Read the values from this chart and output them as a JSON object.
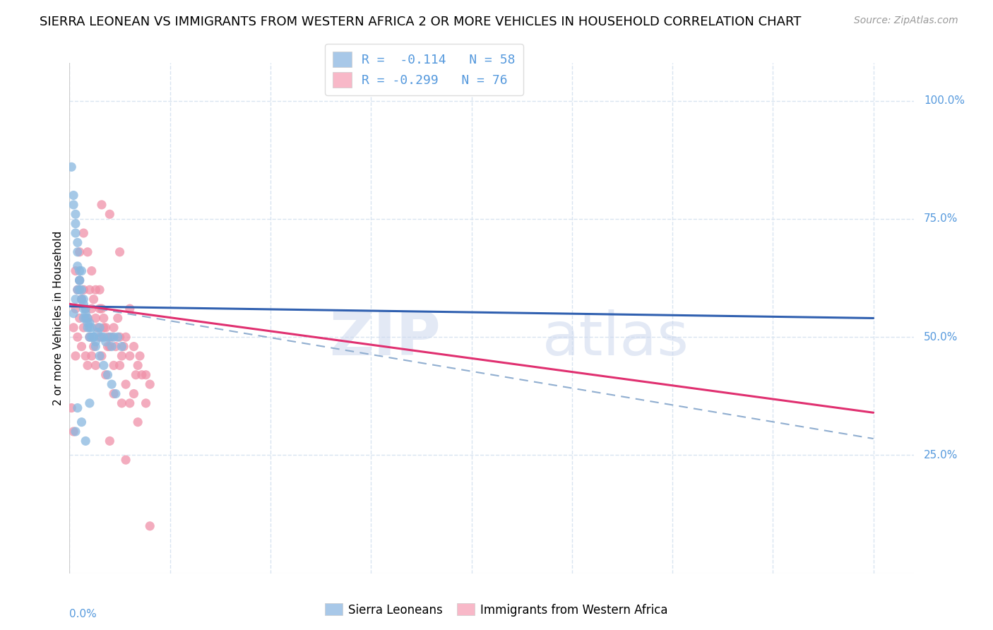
{
  "title": "SIERRA LEONEAN VS IMMIGRANTS FROM WESTERN AFRICA 2 OR MORE VEHICLES IN HOUSEHOLD CORRELATION CHART",
  "source": "Source: ZipAtlas.com",
  "ylabel": "2 or more Vehicles in Household",
  "ylabel_ticks": [
    "25.0%",
    "50.0%",
    "75.0%",
    "100.0%"
  ],
  "ylabel_tick_vals": [
    0.25,
    0.5,
    0.75,
    1.0
  ],
  "watermark_zip": "ZIP",
  "watermark_atlas": "atlas",
  "legend_line1": "R =  -0.114   N = 58",
  "legend_line2": "R = -0.299   N = 76",
  "legend_color1": "#a8c8e8",
  "legend_color2": "#f8b8c8",
  "blue_scatter_x": [
    0.001,
    0.002,
    0.002,
    0.003,
    0.003,
    0.003,
    0.004,
    0.004,
    0.004,
    0.005,
    0.005,
    0.005,
    0.006,
    0.006,
    0.007,
    0.007,
    0.007,
    0.008,
    0.008,
    0.009,
    0.009,
    0.01,
    0.01,
    0.011,
    0.012,
    0.013,
    0.014,
    0.015,
    0.016,
    0.017,
    0.018,
    0.02,
    0.021,
    0.022,
    0.024,
    0.026,
    0.002,
    0.003,
    0.004,
    0.005,
    0.006,
    0.007,
    0.008,
    0.009,
    0.01,
    0.011,
    0.012,
    0.013,
    0.015,
    0.017,
    0.019,
    0.021,
    0.023,
    0.003,
    0.004,
    0.006,
    0.008,
    0.01
  ],
  "blue_scatter_y": [
    0.86,
    0.8,
    0.78,
    0.76,
    0.74,
    0.72,
    0.7,
    0.68,
    0.65,
    0.64,
    0.62,
    0.6,
    0.6,
    0.58,
    0.57,
    0.56,
    0.54,
    0.55,
    0.54,
    0.53,
    0.52,
    0.52,
    0.5,
    0.5,
    0.5,
    0.49,
    0.51,
    0.52,
    0.5,
    0.5,
    0.49,
    0.5,
    0.48,
    0.5,
    0.5,
    0.48,
    0.55,
    0.58,
    0.6,
    0.62,
    0.64,
    0.58,
    0.56,
    0.54,
    0.53,
    0.52,
    0.5,
    0.48,
    0.46,
    0.44,
    0.42,
    0.4,
    0.38,
    0.3,
    0.35,
    0.32,
    0.28,
    0.36
  ],
  "pink_scatter_x": [
    0.001,
    0.002,
    0.002,
    0.003,
    0.003,
    0.004,
    0.004,
    0.005,
    0.005,
    0.006,
    0.006,
    0.007,
    0.007,
    0.008,
    0.008,
    0.009,
    0.009,
    0.01,
    0.01,
    0.011,
    0.011,
    0.012,
    0.012,
    0.013,
    0.013,
    0.014,
    0.015,
    0.015,
    0.016,
    0.017,
    0.018,
    0.019,
    0.02,
    0.021,
    0.022,
    0.023,
    0.024,
    0.025,
    0.026,
    0.027,
    0.028,
    0.03,
    0.032,
    0.034,
    0.036,
    0.038,
    0.04,
    0.003,
    0.005,
    0.007,
    0.009,
    0.011,
    0.013,
    0.015,
    0.017,
    0.019,
    0.022,
    0.025,
    0.028,
    0.032,
    0.016,
    0.02,
    0.025,
    0.03,
    0.035,
    0.02,
    0.028,
    0.016,
    0.018,
    0.022,
    0.026,
    0.03,
    0.034,
    0.038,
    0.04,
    0.033
  ],
  "pink_scatter_y": [
    0.35,
    0.52,
    0.3,
    0.56,
    0.46,
    0.6,
    0.5,
    0.62,
    0.54,
    0.58,
    0.48,
    0.6,
    0.52,
    0.56,
    0.46,
    0.54,
    0.44,
    0.6,
    0.5,
    0.56,
    0.46,
    0.58,
    0.48,
    0.54,
    0.44,
    0.52,
    0.6,
    0.5,
    0.56,
    0.54,
    0.52,
    0.5,
    0.48,
    0.5,
    0.52,
    0.48,
    0.54,
    0.5,
    0.46,
    0.48,
    0.5,
    0.46,
    0.48,
    0.44,
    0.42,
    0.42,
    0.4,
    0.64,
    0.68,
    0.72,
    0.68,
    0.64,
    0.6,
    0.56,
    0.52,
    0.48,
    0.44,
    0.44,
    0.4,
    0.38,
    0.78,
    0.76,
    0.68,
    0.56,
    0.46,
    0.28,
    0.24,
    0.46,
    0.42,
    0.38,
    0.36,
    0.36,
    0.32,
    0.36,
    0.1,
    0.42
  ],
  "blue_line_x0": 0.0,
  "blue_line_x1": 0.4,
  "blue_line_y0": 0.565,
  "blue_line_y1": 0.54,
  "pink_line_x0": 0.0,
  "pink_line_x1": 0.4,
  "pink_line_y0": 0.57,
  "pink_line_y1": 0.34,
  "dash_line_x0": 0.0,
  "dash_line_x1": 0.4,
  "dash_line_y0": 0.57,
  "dash_line_y1": 0.285,
  "xlim": [
    0.0,
    0.42
  ],
  "ylim": [
    0.0,
    1.08
  ],
  "bg_color": "#ffffff",
  "scatter_blue_color": "#88b8e0",
  "scatter_pink_color": "#f090a8",
  "line_blue_color": "#3060b0",
  "line_pink_color": "#e03070",
  "line_dash_color": "#90aed0",
  "tick_color": "#5599dd",
  "grid_color": "#d8e4f0",
  "title_fontsize": 13,
  "source_fontsize": 10,
  "tick_fontsize": 11,
  "ylabel_fontsize": 11
}
